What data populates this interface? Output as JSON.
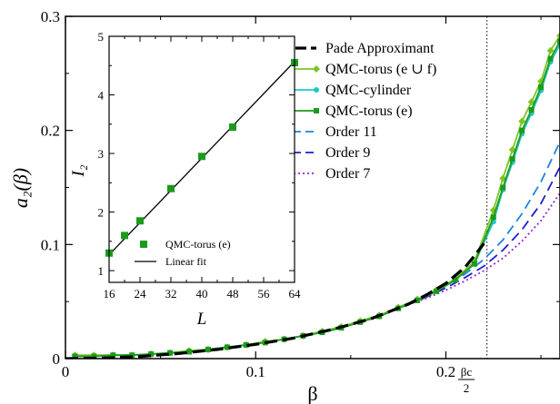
{
  "chart_data": [
    {
      "type": "line",
      "xlabel": "β",
      "ylabel": "a₂(β)",
      "xlim": [
        0,
        0.26
      ],
      "ylim": [
        0,
        0.3
      ],
      "xticks": [
        0,
        0.1,
        0.2
      ],
      "xtick_labels": [
        "0",
        "0.1",
        "0.2"
      ],
      "yticks": [
        0,
        0.1,
        0.2,
        0.3
      ],
      "ytick_labels": [
        "0",
        "0.1",
        "0.2",
        "0.3"
      ],
      "vline": {
        "x": 0.2216,
        "label_top": "βc",
        "label_bottom": "2"
      },
      "legend": {
        "placement": "top-right",
        "entries": [
          {
            "label": "Pade Approximant",
            "color": "#000000",
            "style": "dashed-thick",
            "marker": ""
          },
          {
            "label": "QMC-torus (e ∪ f)",
            "color": "#7cc521",
            "style": "solid",
            "marker": "diamond"
          },
          {
            "label": "QMC-cylinder",
            "color": "#20c8c8",
            "style": "solid",
            "marker": "circle"
          },
          {
            "label": "QMC-torus (e)",
            "color": "#1d9a1d",
            "style": "solid",
            "marker": "square"
          },
          {
            "label": "Order 11",
            "color": "#1a84e0",
            "style": "dashed",
            "marker": ""
          },
          {
            "label": "Order 9",
            "color": "#1f1fd0",
            "style": "dashed",
            "marker": ""
          },
          {
            "label": "Order 7",
            "color": "#8e28d6",
            "style": "dotted",
            "marker": ""
          }
        ]
      },
      "series": [
        {
          "name": "Pade Approximant",
          "color": "#000000",
          "style": "dashed-thick",
          "x": [
            0,
            0.02,
            0.04,
            0.06,
            0.08,
            0.1,
            0.12,
            0.14,
            0.16,
            0.18,
            0.19,
            0.2,
            0.21,
            0.215,
            0.22
          ],
          "y": [
            0,
            0.0005,
            0.002,
            0.0045,
            0.008,
            0.0125,
            0.018,
            0.0255,
            0.0345,
            0.0475,
            0.056,
            0.066,
            0.08,
            0.09,
            0.101
          ]
        },
        {
          "name": "Order 11",
          "color": "#1a84e0",
          "style": "dashed",
          "x": [
            0.18,
            0.19,
            0.2,
            0.21,
            0.22,
            0.23,
            0.24,
            0.25,
            0.26
          ],
          "y": [
            0.0475,
            0.055,
            0.064,
            0.074,
            0.087,
            0.104,
            0.127,
            0.155,
            0.19
          ]
        },
        {
          "name": "Order 9",
          "color": "#1f1fd0",
          "style": "dashed",
          "x": [
            0.18,
            0.19,
            0.2,
            0.21,
            0.22,
            0.23,
            0.24,
            0.25,
            0.26
          ],
          "y": [
            0.0472,
            0.054,
            0.062,
            0.071,
            0.081,
            0.095,
            0.113,
            0.136,
            0.168
          ]
        },
        {
          "name": "Order 7",
          "color": "#8e28d6",
          "style": "dotted",
          "x": [
            0.18,
            0.19,
            0.2,
            0.21,
            0.22,
            0.23,
            0.24,
            0.25,
            0.26
          ],
          "y": [
            0.047,
            0.053,
            0.06,
            0.068,
            0.077,
            0.088,
            0.103,
            0.121,
            0.145
          ]
        },
        {
          "name": "QMC-torus (e ∪ f)",
          "color": "#7cc521",
          "style": "solid",
          "marker": "diamond",
          "x": [
            0.005,
            0.015,
            0.025,
            0.035,
            0.045,
            0.055,
            0.065,
            0.075,
            0.085,
            0.095,
            0.105,
            0.115,
            0.125,
            0.135,
            0.145,
            0.155,
            0.165,
            0.175,
            0.185,
            0.195,
            0.205,
            0.215,
            0.225,
            0.23,
            0.235,
            0.24,
            0.245,
            0.25,
            0.255,
            0.26
          ],
          "y": [
            0.003,
            0.003,
            0.003,
            0.003,
            0.004,
            0.005,
            0.007,
            0.008,
            0.01,
            0.012,
            0.015,
            0.017,
            0.02,
            0.024,
            0.028,
            0.033,
            0.038,
            0.045,
            0.052,
            0.06,
            0.07,
            0.085,
            0.13,
            0.158,
            0.183,
            0.208,
            0.225,
            0.243,
            0.27,
            0.283
          ]
        },
        {
          "name": "QMC-cylinder",
          "color": "#20c8c8",
          "style": "solid",
          "marker": "circle",
          "x": [
            0.005,
            0.015,
            0.025,
            0.035,
            0.045,
            0.055,
            0.065,
            0.075,
            0.085,
            0.095,
            0.105,
            0.115,
            0.125,
            0.135,
            0.145,
            0.155,
            0.165,
            0.175,
            0.185,
            0.195,
            0.205,
            0.215,
            0.225,
            0.23,
            0.235,
            0.24,
            0.245,
            0.25,
            0.255,
            0.26
          ],
          "y": [
            0.002,
            0.002,
            0.003,
            0.003,
            0.004,
            0.005,
            0.006,
            0.008,
            0.01,
            0.012,
            0.014,
            0.017,
            0.02,
            0.023,
            0.027,
            0.032,
            0.037,
            0.044,
            0.051,
            0.059,
            0.069,
            0.083,
            0.12,
            0.148,
            0.172,
            0.197,
            0.215,
            0.235,
            0.26,
            0.275
          ]
        },
        {
          "name": "QMC-torus (e)",
          "color": "#1d9a1d",
          "style": "solid",
          "marker": "square",
          "x": [
            0.005,
            0.015,
            0.025,
            0.035,
            0.045,
            0.055,
            0.065,
            0.075,
            0.085,
            0.095,
            0.105,
            0.115,
            0.125,
            0.135,
            0.145,
            0.155,
            0.165,
            0.175,
            0.185,
            0.195,
            0.205,
            0.215,
            0.225,
            0.23,
            0.235,
            0.24,
            0.245,
            0.25,
            0.255,
            0.26
          ],
          "y": [
            0.002,
            0.002,
            0.003,
            0.003,
            0.004,
            0.005,
            0.006,
            0.008,
            0.01,
            0.012,
            0.014,
            0.017,
            0.02,
            0.023,
            0.027,
            0.032,
            0.037,
            0.044,
            0.051,
            0.059,
            0.069,
            0.083,
            0.124,
            0.15,
            0.175,
            0.2,
            0.218,
            0.238,
            0.263,
            0.278
          ]
        }
      ]
    },
    {
      "type": "scatter",
      "xlabel": "L",
      "ylabel": "I₂",
      "xlim": [
        16,
        64
      ],
      "ylim": [
        0.8,
        5
      ],
      "xticks": [
        16,
        24,
        32,
        40,
        48,
        56,
        64
      ],
      "xtick_labels": [
        "16",
        "24",
        "32",
        "40",
        "48",
        "56",
        "64"
      ],
      "yticks": [
        1,
        2,
        3,
        4,
        5
      ],
      "ytick_labels": [
        "1",
        "2",
        "3",
        "4",
        "5"
      ],
      "legend": {
        "placement": "bottom-right",
        "entries": [
          {
            "label": "QMC-torus (e)",
            "color": "#1d9a1d",
            "marker": "square"
          },
          {
            "label": "Linear fit",
            "color": "#000000",
            "marker": ""
          }
        ]
      },
      "series": [
        {
          "name": "QMC-torus (e)",
          "color": "#1d9a1d",
          "marker": "square",
          "x": [
            16,
            20,
            24,
            32,
            40,
            48,
            64
          ],
          "y": [
            1.3,
            1.6,
            1.85,
            2.4,
            2.95,
            3.45,
            4.55
          ]
        },
        {
          "name": "Linear fit",
          "color": "#000000",
          "style": "solid",
          "x": [
            16,
            64
          ],
          "y": [
            1.27,
            4.57
          ]
        }
      ]
    }
  ]
}
